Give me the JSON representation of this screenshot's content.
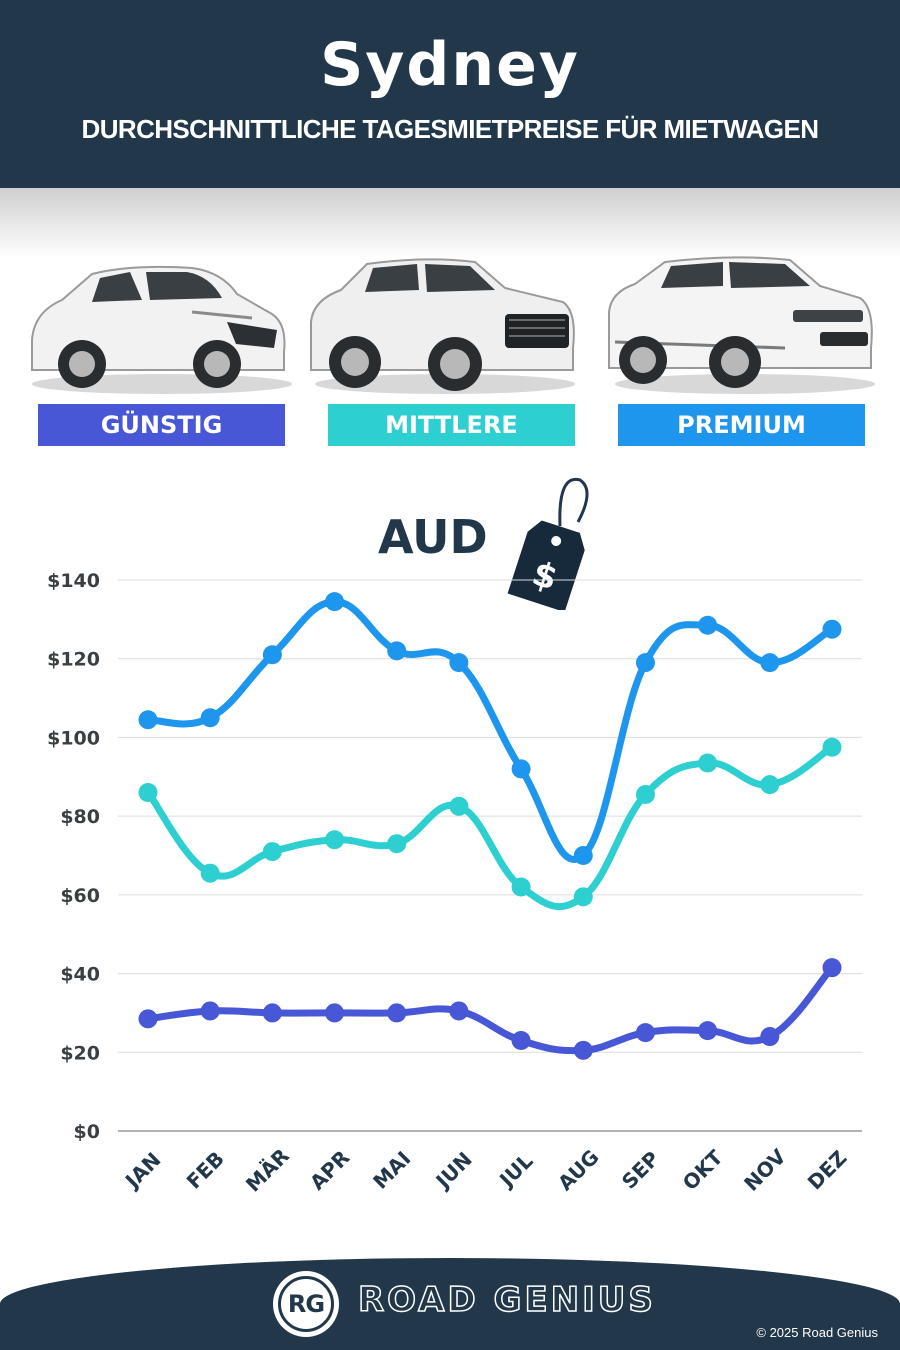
{
  "header": {
    "title": "Sydney",
    "subtitle": "DURCHSCHNITTLICHE TAGESMIETPREISE FÜR MIETWAGEN"
  },
  "categories_labels": {
    "budget": "GÜNSTIG",
    "mid": "MITTLERE",
    "premium": "PREMIUM"
  },
  "currency_label": "AUD",
  "tag_symbol": "$",
  "footer": {
    "logo_text": "RG",
    "brand": "ROAD GENIUS",
    "copyright": "© 2025 Road Genius"
  },
  "chart_data": {
    "type": "line",
    "categories": [
      "JAN",
      "FEB",
      "MÄR",
      "APR",
      "MAI",
      "JUN",
      "JUL",
      "AUG",
      "SEP",
      "OKT",
      "NOV",
      "DEZ"
    ],
    "y_tick_labels": [
      "$0",
      "$20",
      "$40",
      "$60",
      "$80",
      "$100",
      "$120",
      "$140"
    ],
    "ylim": [
      0,
      140
    ],
    "grid": true,
    "series": [
      {
        "name": "PREMIUM",
        "color": "#1f96ee",
        "values": [
          104.5,
          105,
          121,
          134.5,
          122,
          119,
          92,
          70,
          119,
          128.5,
          119,
          127.5
        ]
      },
      {
        "name": "MITTLERE",
        "color": "#2ecfd0",
        "values": [
          86,
          65.5,
          71,
          74,
          73,
          82.5,
          62,
          59.5,
          85.5,
          93.5,
          88,
          97.5
        ]
      },
      {
        "name": "GÜNSTIG",
        "color": "#4757d6",
        "values": [
          28.5,
          30.5,
          30,
          30,
          30,
          30.5,
          23,
          20.5,
          25,
          25.5,
          24,
          41.5
        ]
      }
    ]
  }
}
